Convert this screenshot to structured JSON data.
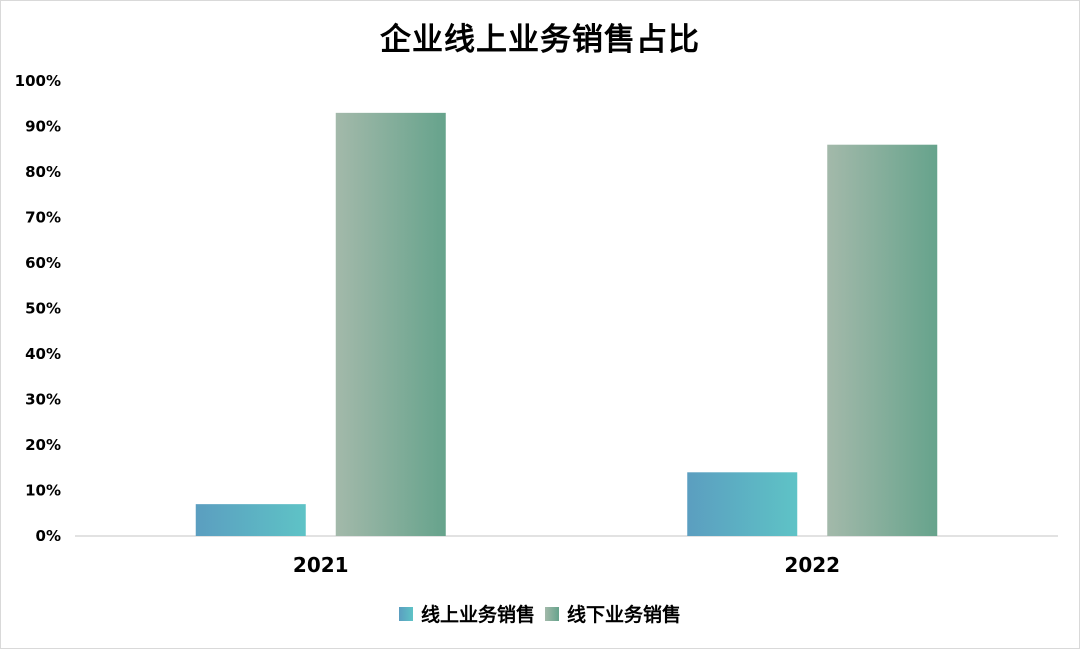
{
  "chart_data": {
    "type": "bar",
    "title": "企业线上业务销售占比",
    "categories": [
      "2021",
      "2022"
    ],
    "series": [
      {
        "name": "线上业务销售",
        "values": [
          7,
          14
        ],
        "color_start": "#5b9ec0",
        "color_end": "#5ec3c6"
      },
      {
        "name": "线下业务销售",
        "values": [
          93,
          86
        ],
        "color_start": "#a3b9aa",
        "color_end": "#66a38c"
      }
    ],
    "y_ticks": [
      "0%",
      "10%",
      "20%",
      "30%",
      "40%",
      "50%",
      "60%",
      "70%",
      "80%",
      "90%",
      "100%"
    ],
    "ylim": [
      0,
      100
    ],
    "xlabel": "",
    "ylabel": "",
    "grid": false,
    "legend_position": "bottom"
  }
}
